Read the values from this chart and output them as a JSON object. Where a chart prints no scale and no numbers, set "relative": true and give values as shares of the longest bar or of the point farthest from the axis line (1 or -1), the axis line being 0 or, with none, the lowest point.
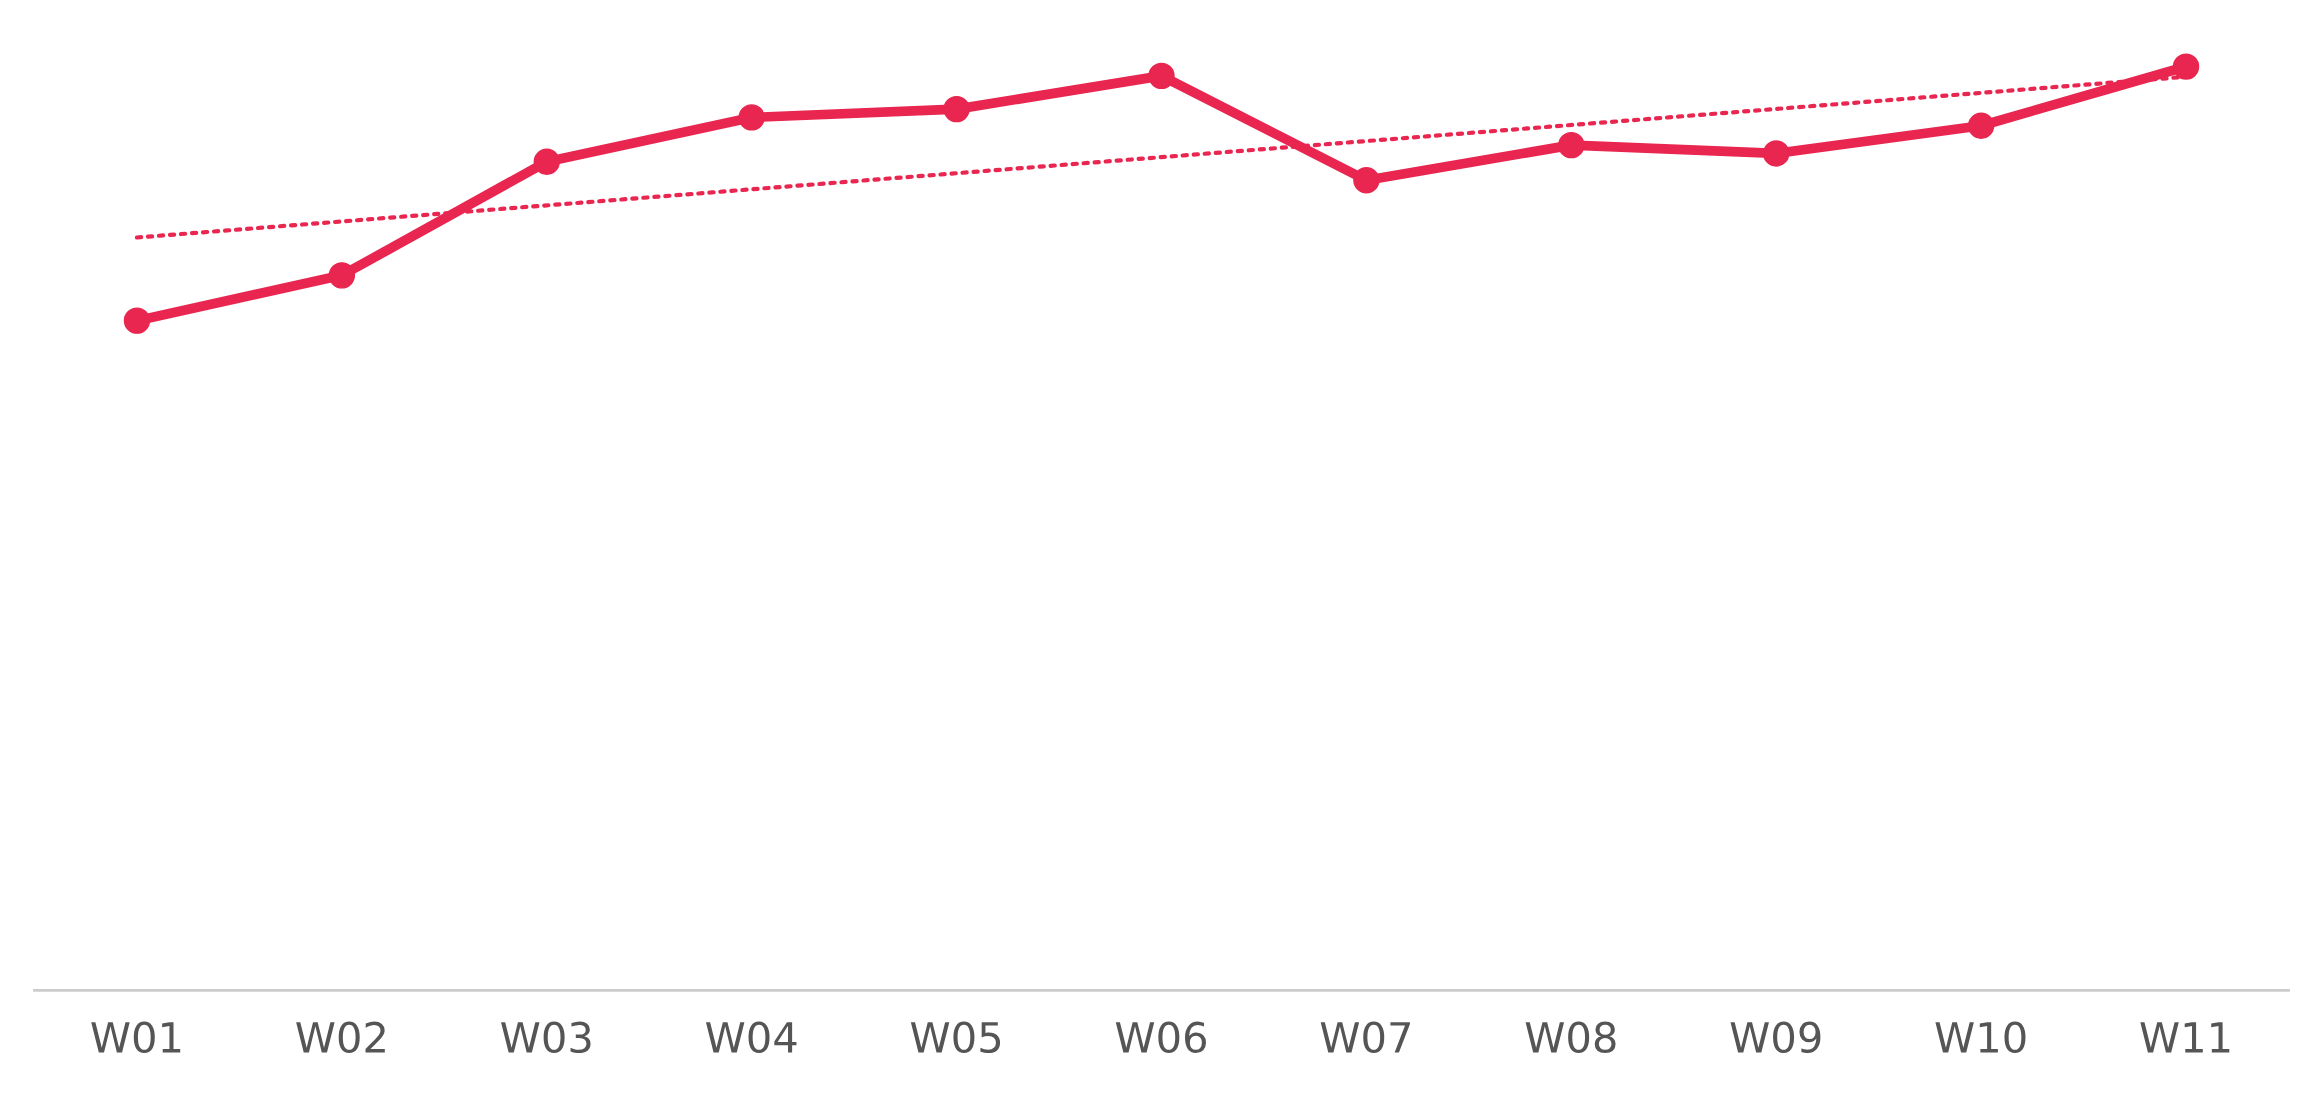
{
  "chart_data": {
    "type": "line",
    "relative": true,
    "categories": [
      "W01",
      "W02",
      "W03",
      "W04",
      "W05",
      "W06",
      "W07",
      "W08",
      "W09",
      "W10",
      "W11"
    ],
    "series": [
      {
        "color": "#e8264f",
        "values": [
          0.725,
          0.774,
          0.897,
          0.945,
          0.954,
          0.99,
          0.877,
          0.915,
          0.906,
          0.936,
          1.0
        ],
        "marker": "circle",
        "line_style": "solid"
      },
      {
        "color": "#e8264f",
        "x": [
          "W01",
          "W11"
        ],
        "values": [
          0.815,
          0.989
        ],
        "marker": "none",
        "line_style": "dotted"
      }
    ],
    "tick_labels": "x"
  }
}
